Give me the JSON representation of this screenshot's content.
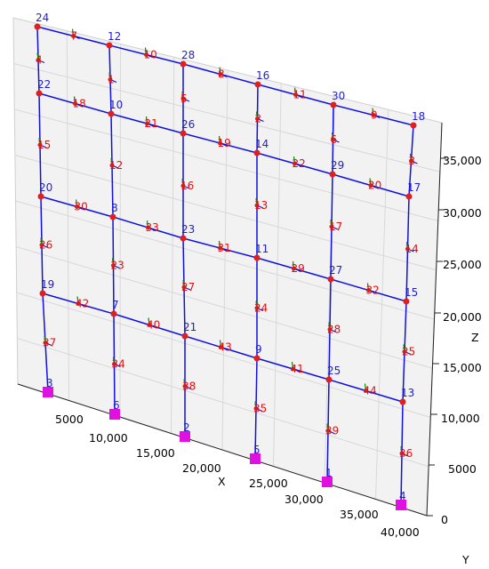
{
  "axes": {
    "x": {
      "label": "X",
      "ticks": [
        "5000",
        "10,000",
        "15,000",
        "20,000",
        "25,000",
        "30,000",
        "35,000",
        "40,000"
      ]
    },
    "y": {
      "label": "Y"
    },
    "z": {
      "label": "Z",
      "ticks": [
        "0",
        "5000",
        "10,000",
        "15,000",
        "20,000",
        "25,000",
        "30,000",
        "35,000"
      ]
    }
  },
  "nodes": {
    "rows": [
      [
        "3",
        "6",
        "2",
        "5",
        "1",
        "4"
      ],
      [
        "19",
        "7",
        "21",
        "9",
        "25",
        "13"
      ],
      [
        "20",
        "8",
        "23",
        "11",
        "27",
        "15"
      ],
      [
        "22",
        "10",
        "26",
        "14",
        "29",
        "17"
      ],
      [
        "24",
        "12",
        "28",
        "16",
        "30",
        "18"
      ]
    ]
  },
  "beams": {
    "rows": [
      [
        "42",
        "40",
        "43",
        "41",
        "44"
      ],
      [
        "30",
        "33",
        "31",
        "29",
        "32"
      ],
      [
        "18",
        "21",
        "19",
        "22",
        "20"
      ],
      [
        "7",
        "10",
        "8",
        "11",
        "9"
      ]
    ]
  },
  "columns": {
    "rows": [
      [
        "37",
        "34",
        "38",
        "35",
        "39",
        "36"
      ],
      [
        "26",
        "23",
        "27",
        "24",
        "28",
        "25"
      ],
      [
        "15",
        "12",
        "16",
        "13",
        "17",
        "14"
      ],
      [
        "4",
        "1",
        "5",
        "2",
        "6",
        "3"
      ]
    ]
  }
}
